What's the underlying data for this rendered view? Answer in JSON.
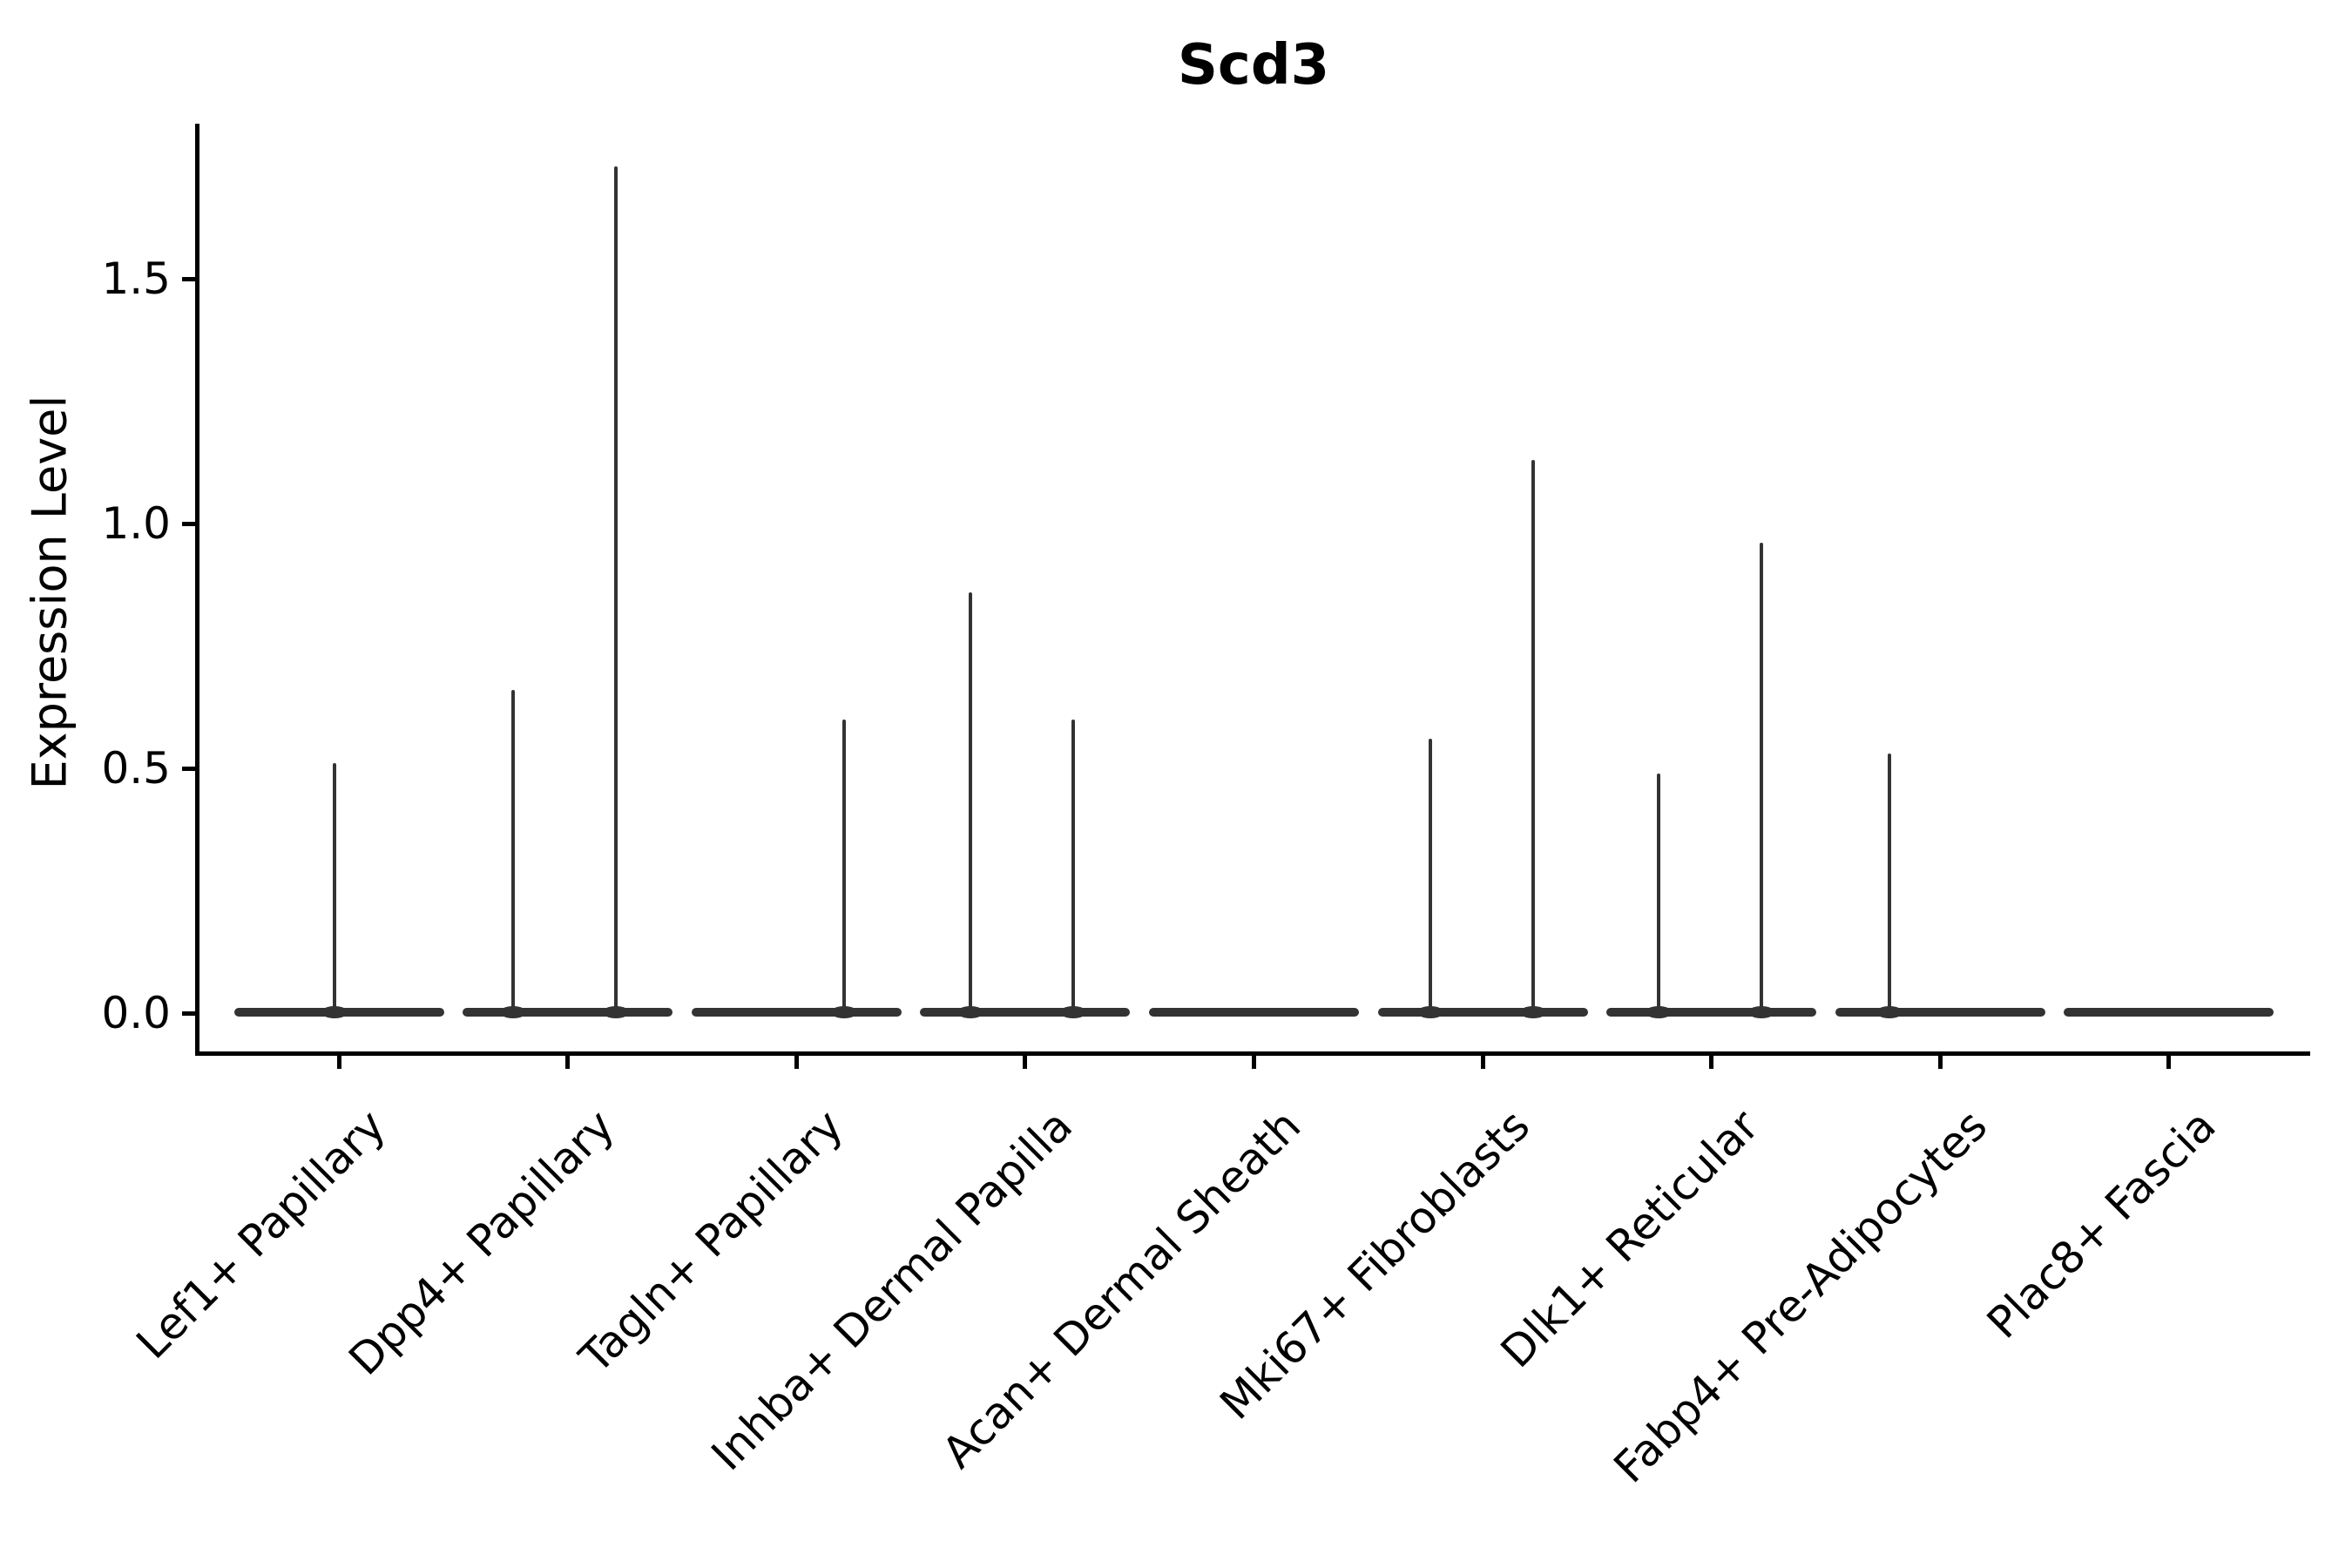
{
  "chart_data": {
    "type": "violin",
    "title": "Scd3",
    "xlabel": "",
    "ylabel": "Expression Level",
    "yticks": [
      "0.0",
      "0.5",
      "1.0",
      "1.5"
    ],
    "ytick_values": [
      0.0,
      0.5,
      1.0,
      1.5
    ],
    "ylim": [
      0,
      1.82
    ],
    "grid": false,
    "legend": "none",
    "violin_color": "#333333",
    "axis_color": "#000000",
    "base_half_width_units": 0.46,
    "categories": [
      {
        "label": "Lef1+ Papillary",
        "spikes": [
          {
            "offset": -0.02,
            "max": 0.51
          }
        ]
      },
      {
        "label": "Dpp4+ Papillary",
        "spikes": [
          {
            "offset": -0.24,
            "max": 0.66
          },
          {
            "offset": 0.21,
            "max": 1.73
          }
        ]
      },
      {
        "label": "Tagln+ Papillary",
        "spikes": [
          {
            "offset": 0.21,
            "max": 0.6
          }
        ]
      },
      {
        "label": "Inhba+ Dermal Papilla",
        "spikes": [
          {
            "offset": -0.24,
            "max": 0.86
          },
          {
            "offset": 0.21,
            "max": 0.6
          }
        ]
      },
      {
        "label": "Acan+ Dermal Sheath",
        "spikes": []
      },
      {
        "label": "Mki67+ Fibroblasts",
        "spikes": [
          {
            "offset": -0.23,
            "max": 0.56
          },
          {
            "offset": 0.22,
            "max": 1.13
          }
        ]
      },
      {
        "label": "Dlk1+ Reticular",
        "spikes": [
          {
            "offset": -0.23,
            "max": 0.49
          },
          {
            "offset": 0.22,
            "max": 0.96
          }
        ]
      },
      {
        "label": "Fabp4+ Pre-Adipocytes",
        "spikes": [
          {
            "offset": -0.22,
            "max": 0.53
          }
        ]
      },
      {
        "label": "Plac8+ Fascia",
        "spikes": []
      }
    ]
  }
}
